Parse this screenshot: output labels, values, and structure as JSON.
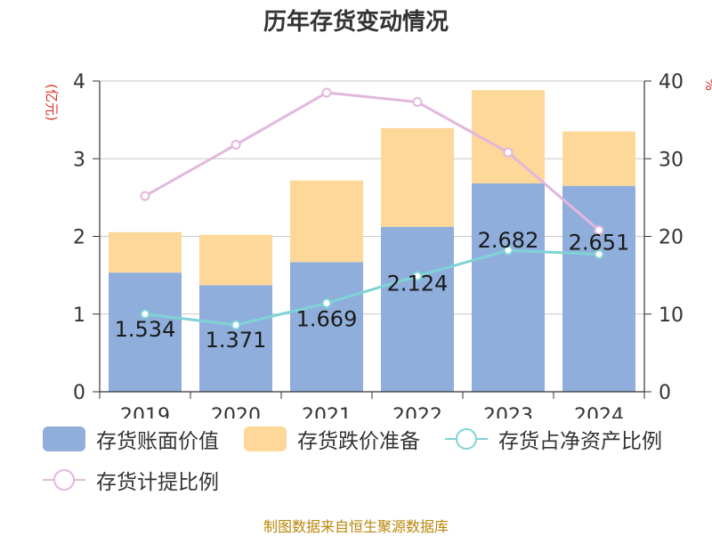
{
  "title": "历年存货变动情况",
  "left_axis_unit": "(亿元)",
  "right_axis_unit": "%",
  "source": "制图数据来自恒生聚源数据库",
  "colors": {
    "book_value": "#8faedb",
    "impairment": "#fdd898",
    "net_asset_ratio": "#7fd3d5",
    "provision_ratio": "#e3b7dc",
    "unit_red": "#e0302a"
  },
  "legend": [
    {
      "label": "存货账面价值"
    },
    {
      "label": "存货跌价准备"
    },
    {
      "label": "存货占净资产比例"
    },
    {
      "label": "存货计提比例"
    }
  ],
  "chart_data": {
    "type": "bar",
    "categories": [
      "2019",
      "2020",
      "2021",
      "2022",
      "2023",
      "2024"
    ],
    "left_axis": {
      "min": 0,
      "max": 4,
      "ticks": [
        0,
        1,
        2,
        3,
        4
      ]
    },
    "right_axis": {
      "min": 0,
      "max": 40,
      "ticks": [
        0,
        10,
        20,
        30,
        40
      ]
    },
    "bar_series": [
      {
        "name": "存货账面价值",
        "values": [
          1.534,
          1.371,
          1.669,
          2.124,
          2.682,
          2.651
        ],
        "labels": [
          "1.534",
          "1.371",
          "1.669",
          "2.124",
          "2.682",
          "2.651"
        ]
      },
      {
        "name": "存货跌价准备",
        "values": [
          0.52,
          0.65,
          1.05,
          1.27,
          1.2,
          0.7
        ]
      }
    ],
    "line_series": [
      {
        "name": "存货占净资产比例",
        "axis": "right",
        "values": [
          10.0,
          8.6,
          11.4,
          14.9,
          18.2,
          17.7
        ]
      },
      {
        "name": "存货计提比例",
        "axis": "right",
        "values": [
          25.2,
          31.8,
          38.5,
          37.3,
          30.8,
          20.8
        ]
      }
    ]
  }
}
